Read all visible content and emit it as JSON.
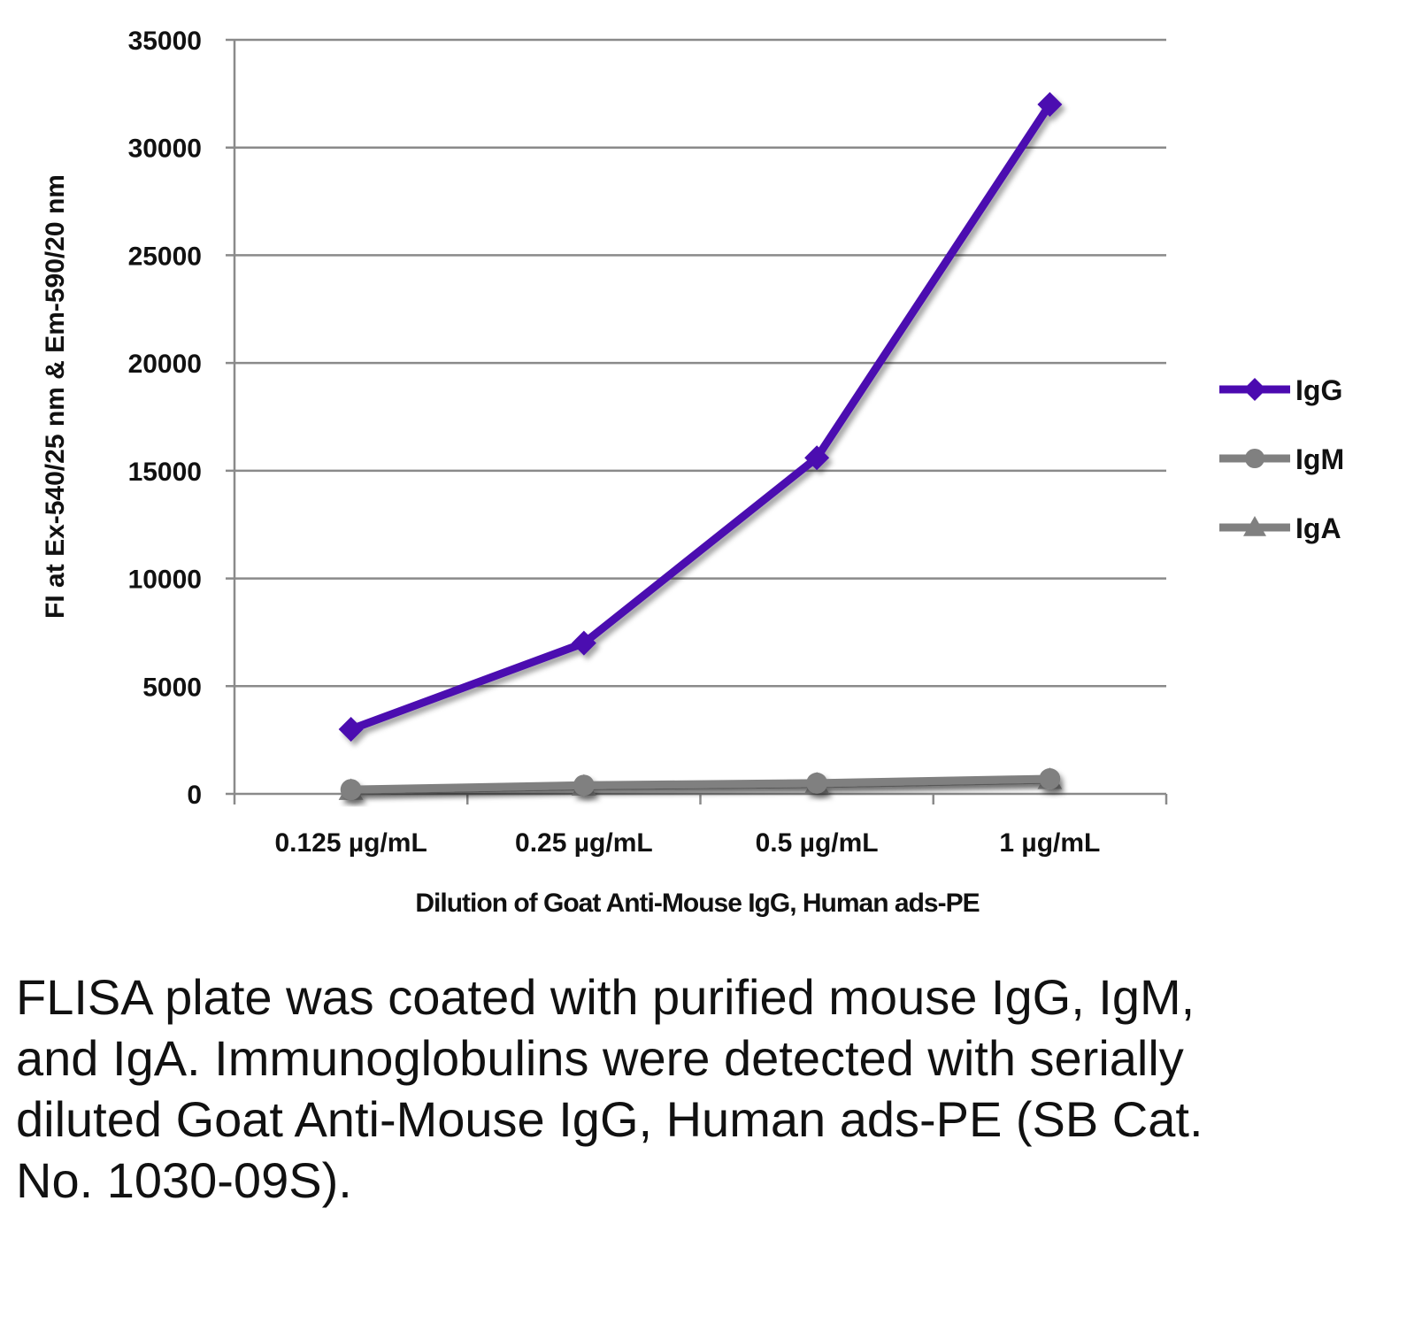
{
  "chart_data": {
    "type": "line",
    "title": "",
    "xlabel": "Dilution of Goat Anti-Mouse IgG, Human ads-PE",
    "ylabel": "FI at Ex-540/25 nm & Em-590/20 nm",
    "categories": [
      "0.125 µg/mL",
      "0.25 µg/mL",
      "0.5 µg/mL",
      "1 µg/mL"
    ],
    "ylim": [
      0,
      35000
    ],
    "yticks": [
      "0",
      "5000",
      "10000",
      "15000",
      "20000",
      "25000",
      "30000",
      "35000"
    ],
    "grid": true,
    "legend_position": "right",
    "series": [
      {
        "name": "IgG",
        "marker": "diamond",
        "color": "#4b0ab0",
        "values": [
          3000,
          7000,
          15600,
          32000
        ]
      },
      {
        "name": "IgM",
        "marker": "circle",
        "color": "#808080",
        "values": [
          200,
          400,
          500,
          700
        ]
      },
      {
        "name": "IgA",
        "marker": "triangle",
        "color": "#808080",
        "values": [
          150,
          350,
          450,
          650
        ]
      }
    ]
  },
  "caption": "FLISA plate was coated with purified mouse IgG, IgM, and IgA.  Immunoglobulins were detected with serially diluted Goat Anti-Mouse IgG, Human ads-PE (SB Cat. No. 1030-09S)."
}
